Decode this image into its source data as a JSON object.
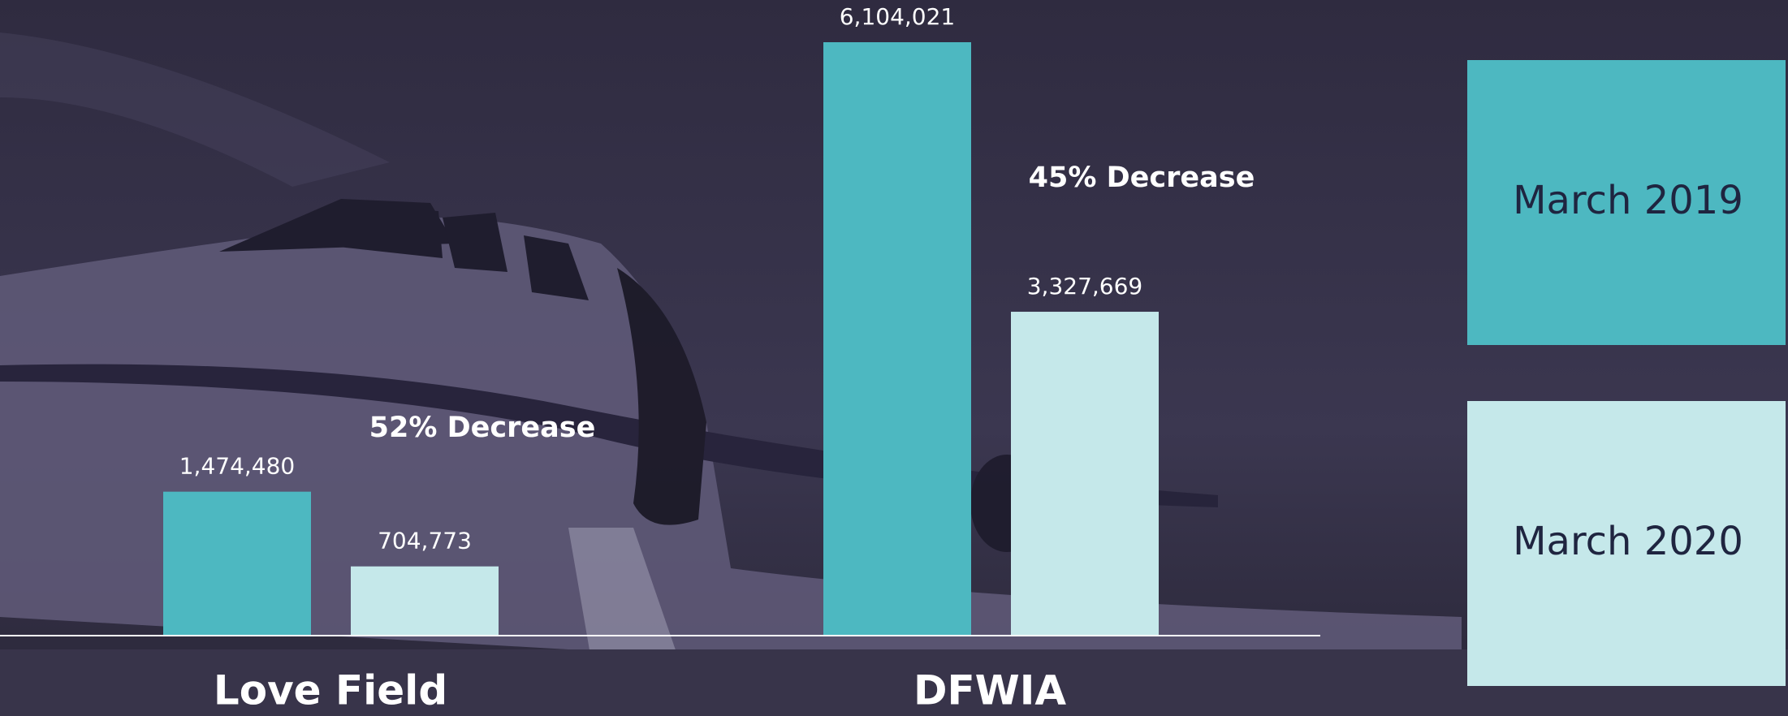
{
  "chart_data": {
    "type": "bar",
    "categories": [
      "Love Field",
      "DFWIA"
    ],
    "series": [
      {
        "name": "March 2019",
        "color": "#4db8c1",
        "values": [
          1474480,
          6104021
        ],
        "value_labels": [
          "1,474,480",
          "6,104,021"
        ]
      },
      {
        "name": "March 2020",
        "color": "#c5e8ea",
        "values": [
          704773,
          3327669
        ],
        "value_labels": [
          "704,773",
          "3,327,669"
        ]
      }
    ],
    "annotations": [
      "52% Decrease",
      "45% Decrease"
    ]
  }
}
